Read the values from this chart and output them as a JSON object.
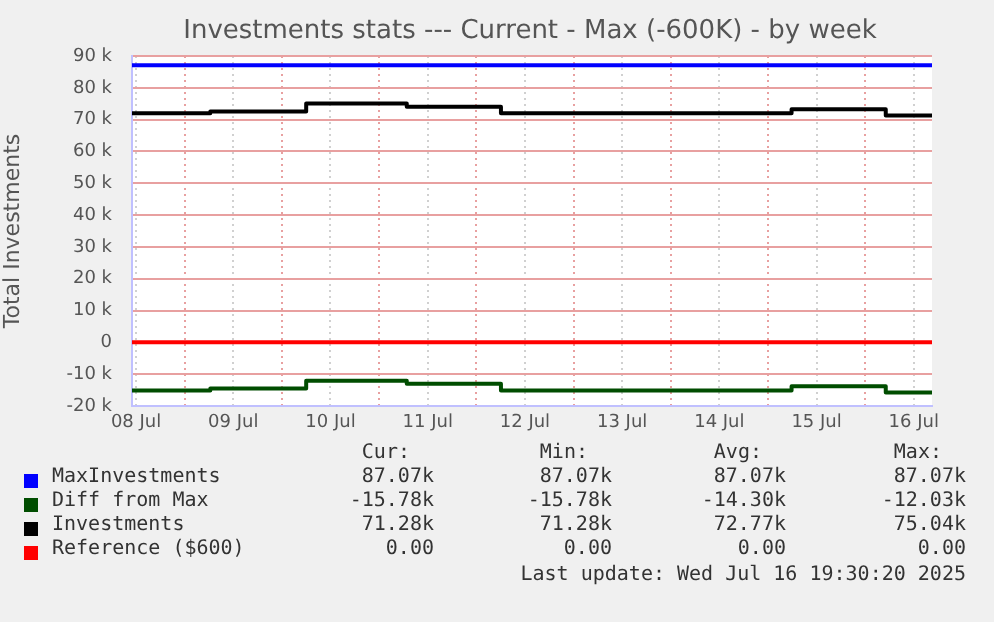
{
  "chart_data": {
    "type": "step",
    "title": "Investments stats --- Current - Max (-600K) - by week",
    "ylabel": "Total Investments",
    "x": [
      "2025-07-08T11:00",
      "2025-07-09T06:20",
      "2025-07-10T06:00",
      "2025-07-11T06:50",
      "2025-07-12T06:05",
      "2025-07-15T05:50",
      "2025-07-16T05:05",
      "2025-07-16T16:30"
    ],
    "series": [
      {
        "name": "MaxInvestments",
        "color": "#0000ff",
        "values": [
          87070,
          87070,
          87070,
          87070,
          87070,
          87070,
          87070,
          87070
        ]
      },
      {
        "name": "Diff from Max",
        "color": "#004d00",
        "values": [
          -15100,
          -14500,
          -12030,
          -13000,
          -15100,
          -13800,
          -15780,
          -15780
        ]
      },
      {
        "name": "Investments",
        "color": "#000000",
        "values": [
          71970,
          72570,
          75040,
          74070,
          71970,
          73270,
          71280,
          71280
        ]
      },
      {
        "name": "Reference ($600)",
        "color": "#ff0000",
        "values": [
          0,
          0,
          0,
          0,
          0,
          0,
          0,
          0
        ]
      }
    ],
    "xlim": [
      "2025-07-08T11:00",
      "2025-07-16T16:30"
    ],
    "xticks": [
      {
        "value": "2025-07-08T12:00",
        "label": "08 Jul"
      },
      {
        "value": "2025-07-09T00:00",
        "label": null
      },
      {
        "value": "2025-07-09T12:00",
        "label": "09 Jul"
      },
      {
        "value": "2025-07-10T00:00",
        "label": null
      },
      {
        "value": "2025-07-10T12:00",
        "label": "10 Jul"
      },
      {
        "value": "2025-07-11T00:00",
        "label": null
      },
      {
        "value": "2025-07-11T12:00",
        "label": "11 Jul"
      },
      {
        "value": "2025-07-12T00:00",
        "label": null
      },
      {
        "value": "2025-07-12T12:00",
        "label": "12 Jul"
      },
      {
        "value": "2025-07-13T00:00",
        "label": null
      },
      {
        "value": "2025-07-13T12:00",
        "label": "13 Jul"
      },
      {
        "value": "2025-07-14T00:00",
        "label": null
      },
      {
        "value": "2025-07-14T12:00",
        "label": "14 Jul"
      },
      {
        "value": "2025-07-15T00:00",
        "label": null
      },
      {
        "value": "2025-07-15T12:00",
        "label": "15 Jul"
      },
      {
        "value": "2025-07-16T00:00",
        "label": null
      },
      {
        "value": "2025-07-16T12:00",
        "label": "16 Jul"
      }
    ],
    "ylim": [
      -20000,
      90000
    ],
    "yticks": [
      {
        "value": -20000,
        "label": "-20 k"
      },
      {
        "value": -10000,
        "label": "-10 k"
      },
      0,
      {
        "value": 10000,
        "label": "10 k"
      },
      {
        "value": 20000,
        "label": "20 k"
      },
      {
        "value": 30000,
        "label": "30 k"
      },
      {
        "value": 40000,
        "label": "40 k"
      },
      {
        "value": 50000,
        "label": "50 k"
      },
      {
        "value": 60000,
        "label": "60 k"
      },
      {
        "value": 70000,
        "label": "70 k"
      },
      {
        "value": 80000,
        "label": "80 k"
      },
      {
        "value": 90000,
        "label": "90 k"
      }
    ],
    "grid": true,
    "legend": "bottom",
    "marker": "none",
    "line_style": "solid",
    "annotations": [
      "Cur:",
      "Min:",
      "Avg:",
      "Max:",
      "87.07k",
      "87.07k",
      "87.07k",
      "87.07k",
      "-15.78k",
      "-15.78k",
      "-14.30k",
      "-12.03k",
      "71.28k",
      "71.28k",
      "72.77k",
      "75.04k",
      "0.00",
      "0.00",
      "0.00",
      "0.00",
      "Last update: Wed Jul 16 19:30:20 2025"
    ]
  }
}
